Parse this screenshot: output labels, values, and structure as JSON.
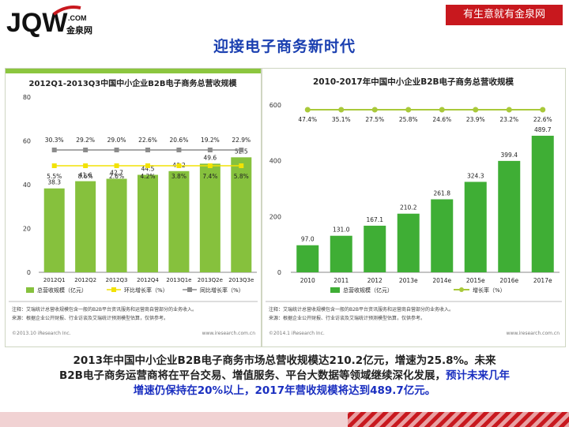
{
  "header": {
    "logo_text": "JQW",
    "logo_domain": ".COM",
    "logo_cn": "金泉网",
    "slogan": "有生意就有金泉网",
    "page_title": "迎接电子商务新时代"
  },
  "chart_data": [
    {
      "type": "bar",
      "title": "2012Q1-2013Q3中国中小企业B2B电子商务总营收规模",
      "categories": [
        "2012Q1",
        "2012Q2",
        "2012Q3",
        "2012Q4",
        "2013Q1e",
        "2013Q2e",
        "2013Q3e"
      ],
      "ylim": [
        0,
        80
      ],
      "yticks": [
        0,
        20,
        40,
        60,
        80
      ],
      "series": [
        {
          "name": "总营收规模（亿元）",
          "values": [
            38.3,
            41.6,
            42.7,
            44.5,
            46.2,
            49.6,
            52.5
          ],
          "labels": [
            "38.3",
            "41.6",
            "42.7",
            "44.5",
            "46.2",
            "49.6",
            "52.5"
          ],
          "color": "#86c13d"
        },
        {
          "name": "环比增长率（%）",
          "values": [
            5.5,
            8.6,
            2.6,
            4.2,
            3.8,
            7.4,
            5.8
          ],
          "labels": [
            "5.5%",
            "8.6%",
            "2.6%",
            "4.2%",
            "3.8%",
            "7.4%",
            "5.8%"
          ],
          "color": "#f2e205"
        },
        {
          "name": "同比增长率（%）",
          "values": [
            30.3,
            29.2,
            29.0,
            22.6,
            20.6,
            19.2,
            22.9
          ],
          "labels": [
            "30.3%",
            "29.2%",
            "29.0%",
            "22.6%",
            "20.6%",
            "19.2%",
            "22.9%"
          ],
          "color": "#8c8c8c"
        }
      ],
      "notes": [
        "注释：艾瑞统计总营收规模包含一般的B2B平台资讯服务和运营商自营部分的业务收入。",
        "来源：根据企业公开财报、行业访谈及艾瑞统计预测模型估算，仅供参考。"
      ],
      "footer": "©2013.10 iResearch Inc.",
      "footer_right": "www.iresearch.com.cn"
    },
    {
      "type": "bar",
      "title": "2010-2017年中国中小企业B2B电子商务总营收规模",
      "categories": [
        "2010",
        "2011",
        "2012",
        "2013e",
        "2014e",
        "2015e",
        "2016e",
        "2017e"
      ],
      "ylim": [
        0,
        600
      ],
      "yticks": [
        0,
        200,
        400,
        600
      ],
      "series": [
        {
          "name": "总营收规模（亿元）",
          "values": [
            97.0,
            131.0,
            167.1,
            210.2,
            261.8,
            324.3,
            399.4,
            489.7
          ],
          "labels": [
            "97.0",
            "131.0",
            "167.1",
            "210.2",
            "261.8",
            "324.3",
            "399.4",
            "489.7"
          ],
          "color": "#3fae35"
        },
        {
          "name": "增长率（%）",
          "values": [
            47.4,
            35.1,
            27.5,
            25.8,
            24.6,
            23.9,
            23.2,
            22.6
          ],
          "labels": [
            "47.4%",
            "35.1%",
            "27.5%",
            "25.8%",
            "24.6%",
            "23.9%",
            "23.2%",
            "22.6%"
          ],
          "color": "#a9c93a"
        }
      ],
      "notes": [
        "注释：艾瑞统计总营收规模包含一般的B2B平台资讯服务和运营商自营部分的业务收入。",
        "来源：根据企业公开财报、行业访谈及艾瑞统计预测模型估算，仅供参考。"
      ],
      "footer": "©2014.1 iResearch Inc.",
      "footer_right": "www.iresearch.com.cn"
    }
  ],
  "summary": {
    "line1": "2013年中国中小企业B2B电子商务市场总营收规模达210.2亿元，增速为25.8%。未来",
    "line2_black": "B2B电子商务运营商将在平台交易、增值服务、平台大数据等领域继续深化发展，",
    "line2_blue": "预计未来几年",
    "line3_blue": "增速仍保持在20%以上，2017年营收规模将达到489.7亿元。"
  },
  "colors": {
    "brand_red": "#c8181e",
    "title_blue": "#1a3fb0",
    "panel_border": "#cfd6c2"
  }
}
